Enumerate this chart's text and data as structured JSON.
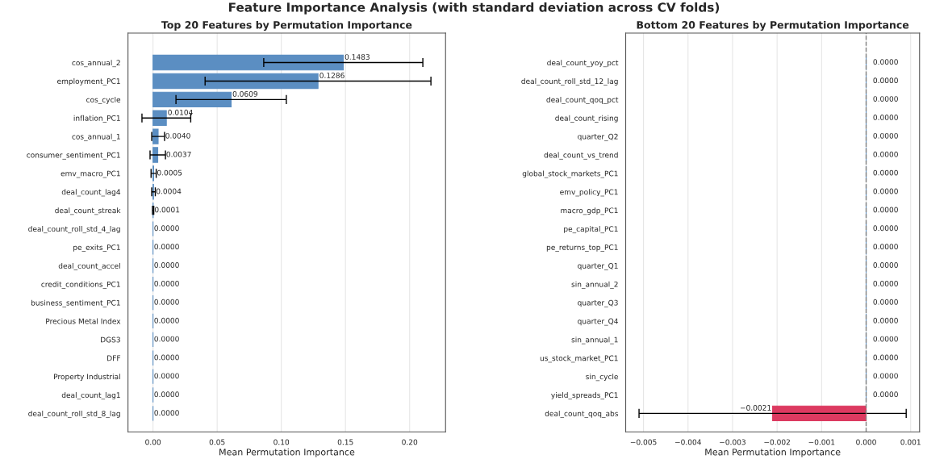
{
  "chart_data": [
    {
      "type": "bar",
      "orientation": "horizontal",
      "annotations": [
        "Feature Importance Analysis (with standard deviation across CV folds)"
      ],
      "title": "Top 20 Features by Permutation Importance",
      "xlabel": "Mean Permutation Importance",
      "categories": [
        "cos_annual_2",
        "employment_PC1",
        "cos_cycle",
        "inflation_PC1",
        "cos_annual_1",
        "consumer_sentiment_PC1",
        "emv_macro_PC1",
        "deal_count_lag4",
        "deal_count_streak",
        "deal_count_roll_std_4_lag",
        "pe_exits_PC1",
        "deal_count_accel",
        "credit_conditions_PC1",
        "business_sentiment_PC1",
        "Precious Metal Index",
        "DGS3",
        "DFF",
        "Property Industrial",
        "deal_count_lag1",
        "deal_count_roll_std_8_lag"
      ],
      "values": [
        0.1483,
        0.1286,
        0.0609,
        0.0104,
        0.004,
        0.0037,
        0.0005,
        0.0004,
        0.0001,
        0,
        0,
        0,
        0,
        0,
        0,
        0,
        0,
        0,
        0,
        0
      ],
      "errors": [
        0.062,
        0.088,
        0.043,
        0.019,
        0.005,
        0.006,
        0.002,
        0.0014,
        0.0005,
        null,
        null,
        null,
        null,
        null,
        null,
        null,
        null,
        null,
        null,
        null
      ],
      "value_labels": [
        "0.1483",
        "0.1286",
        "0.0609",
        "0.0104",
        "0.0040",
        "0.0037",
        "0.0005",
        "0.0004",
        "0.0001",
        "0.0000",
        "0.0000",
        "0.0000",
        "0.0000",
        "0.0000",
        "0.0000",
        "0.0000",
        "0.0000",
        "0.0000",
        "0.0000",
        "0.0000"
      ],
      "colors": [
        "#5b8ec2",
        "#5b8ec2",
        "#5b8ec2",
        "#5b8ec2",
        "#5b8ec2",
        "#5b8ec2",
        "#5b8ec2",
        "#5b8ec2",
        "#5b8ec2",
        "#5b8ec2",
        "#5b8ec2",
        "#5b8ec2",
        "#5b8ec2",
        "#5b8ec2",
        "#5b8ec2",
        "#5b8ec2",
        "#5b8ec2",
        "#5b8ec2",
        "#5b8ec2",
        "#5b8ec2"
      ],
      "xlim": [
        -0.0195,
        0.228
      ],
      "xticks": [
        {
          "value": 0,
          "label": "0.00"
        },
        {
          "value": 0.05,
          "label": "0.05"
        },
        {
          "value": 0.1,
          "label": "0.10"
        },
        {
          "value": 0.15,
          "label": "0.15"
        },
        {
          "value": 0.2,
          "label": "0.20"
        }
      ],
      "grid": "x"
    },
    {
      "type": "bar",
      "orientation": "horizontal",
      "title": "Bottom 20 Features by Permutation Importance",
      "xlabel": "Mean Permutation Importance",
      "categories": [
        "deal_count_yoy_pct",
        "deal_count_roll_std_12_lag",
        "deal_count_qoq_pct",
        "deal_count_rising",
        "quarter_Q2",
        "deal_count_vs_trend",
        "global_stock_markets_PC1",
        "emv_policy_PC1",
        "macro_gdp_PC1",
        "pe_capital_PC1",
        "pe_returns_top_PC1",
        "quarter_Q1",
        "sin_annual_2",
        "quarter_Q3",
        "quarter_Q4",
        "sin_annual_1",
        "us_stock_market_PC1",
        "sin_cycle",
        "yield_spreads_PC1",
        "deal_count_qoq_abs"
      ],
      "values": [
        0,
        0,
        0,
        0,
        0,
        0,
        0,
        0,
        0,
        0,
        0,
        0,
        0,
        0,
        0,
        0,
        0,
        0,
        0,
        -0.0021
      ],
      "errors": [
        null,
        null,
        null,
        null,
        null,
        null,
        null,
        null,
        null,
        null,
        null,
        null,
        null,
        null,
        null,
        null,
        null,
        null,
        null,
        0.003
      ],
      "value_labels": [
        "0.0000",
        "0.0000",
        "0.0000",
        "0.0000",
        "0.0000",
        "0.0000",
        "0.0000",
        "0.0000",
        "0.0000",
        "0.0000",
        "0.0000",
        "0.0000",
        "0.0000",
        "0.0000",
        "0.0000",
        "0.0000",
        "0.0000",
        "0.0000",
        "0.0000",
        "−0.0021"
      ],
      "colors": [
        "#5b8ec2",
        "#5b8ec2",
        "#5b8ec2",
        "#5b8ec2",
        "#5b8ec2",
        "#5b8ec2",
        "#5b8ec2",
        "#5b8ec2",
        "#5b8ec2",
        "#5b8ec2",
        "#5b8ec2",
        "#5b8ec2",
        "#5b8ec2",
        "#5b8ec2",
        "#5b8ec2",
        "#5b8ec2",
        "#5b8ec2",
        "#5b8ec2",
        "#5b8ec2",
        "#dc3a60"
      ],
      "xlim": [
        -0.0054,
        0.0012
      ],
      "xticks": [
        {
          "value": -0.005,
          "label": "−0.005"
        },
        {
          "value": -0.004,
          "label": "−0.004"
        },
        {
          "value": -0.003,
          "label": "−0.003"
        },
        {
          "value": -0.002,
          "label": "−0.002"
        },
        {
          "value": -0.001,
          "label": "−0.001"
        },
        {
          "value": 0,
          "label": "0.000"
        },
        {
          "value": 0.001,
          "label": "0.001"
        }
      ],
      "ref_lines": [
        {
          "axis": "x",
          "value": 0,
          "color": "#808080",
          "line_style": "dashed"
        }
      ],
      "grid": "x"
    }
  ]
}
